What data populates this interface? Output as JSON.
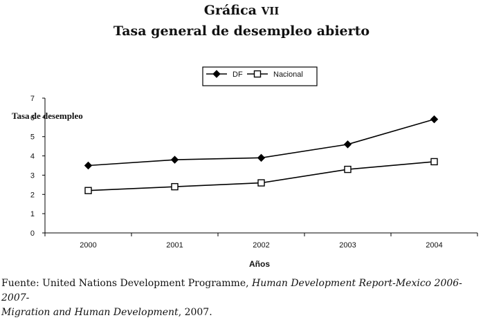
{
  "figure": {
    "label_main": "Gráfica",
    "label_num": "VII",
    "title": "Tasa general de desempleo abierto"
  },
  "source": {
    "prefix": "Fuente: United Nations Development Programme, ",
    "report": "Human Development Report-Mexico 2006-2007-",
    "report_cont": "Migration and Human Development",
    "suffix": ", 2007."
  },
  "chart_data": {
    "type": "line",
    "title": "Tasa general de desempleo abierto",
    "xlabel": "Años",
    "ylabel": "Tasa de desempleo",
    "ylim": [
      0,
      7
    ],
    "yticks": [
      "0",
      "1",
      "2",
      "3",
      "4",
      "5",
      "6",
      "7"
    ],
    "categories": [
      "2000",
      "2001",
      "2002",
      "2003",
      "2004"
    ],
    "legend_position": "top-center",
    "series": [
      {
        "name": "DF",
        "marker": "diamond",
        "color": "#000000",
        "values": [
          3.5,
          3.8,
          3.9,
          4.6,
          5.9
        ]
      },
      {
        "name": "Nacional",
        "marker": "square",
        "color": "#000000",
        "values": [
          2.2,
          2.4,
          2.6,
          3.3,
          3.7
        ]
      }
    ]
  }
}
